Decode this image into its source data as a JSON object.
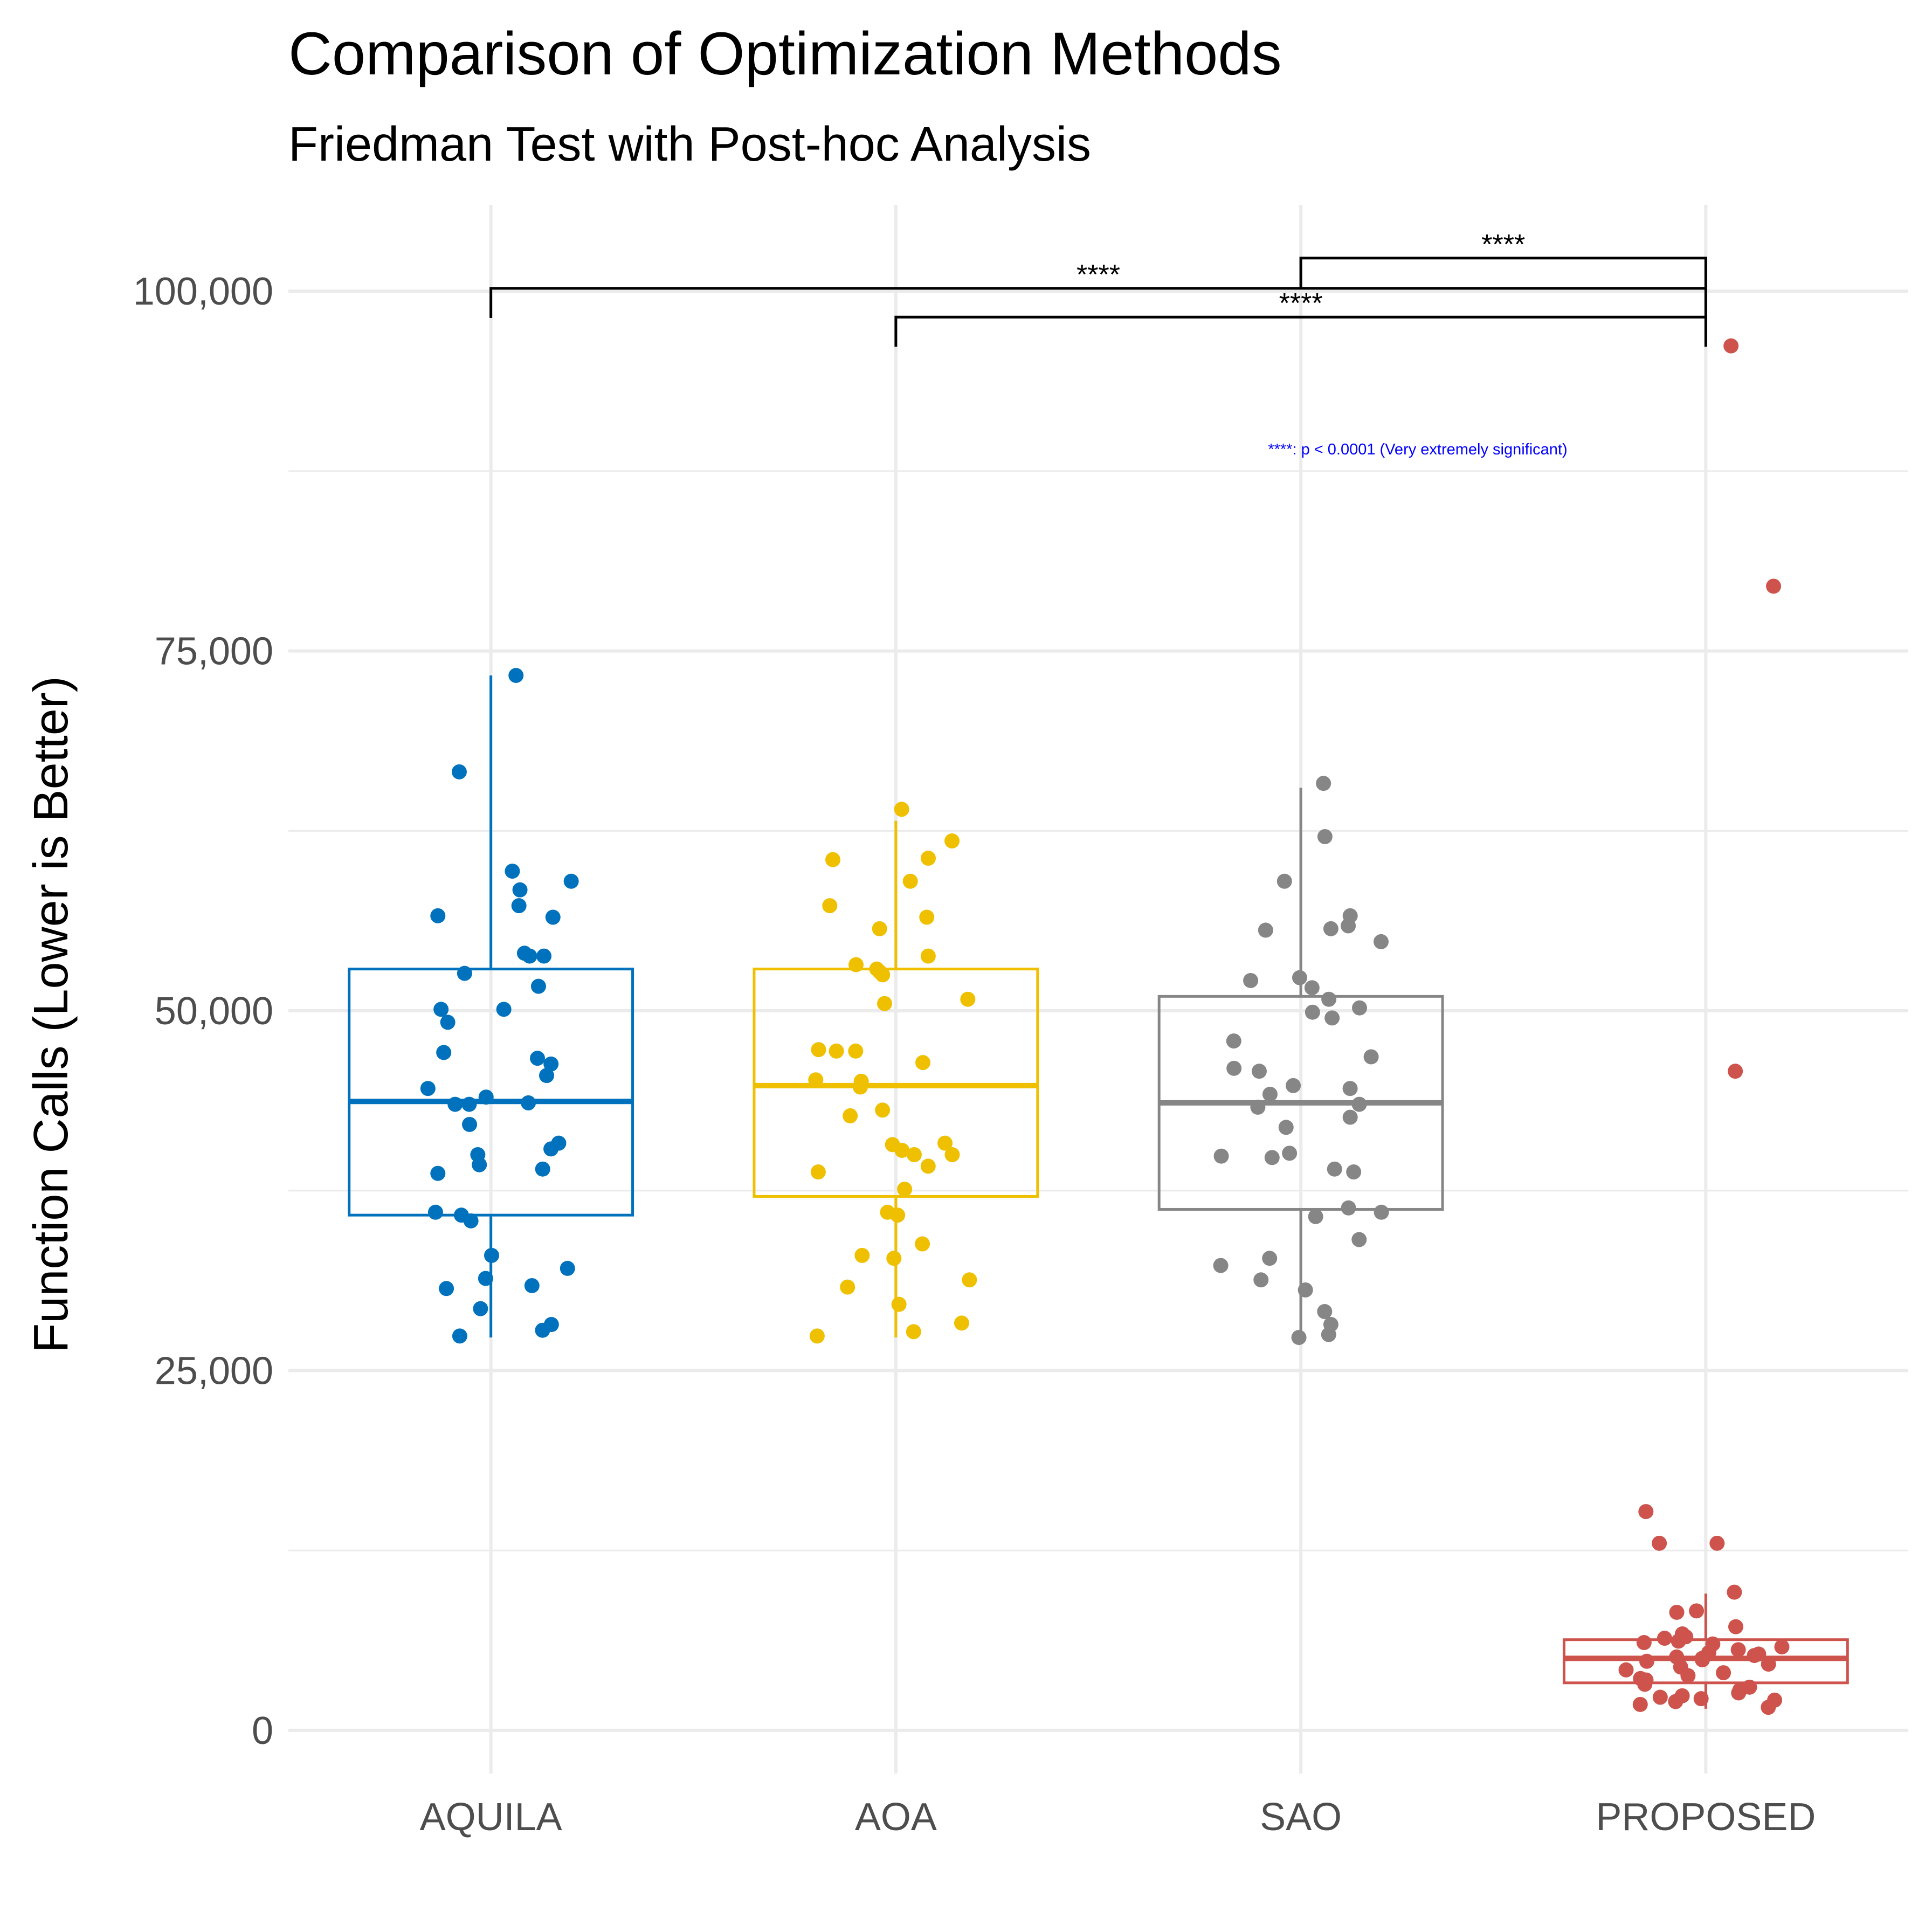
{
  "chart_data": {
    "type": "box",
    "title": "Comparison of Optimization Methods",
    "subtitle": "Friedman Test with Post-hoc Analysis",
    "xlabel": "",
    "ylabel": "Function Calls (Lower is Better)",
    "ylim": [
      -3000,
      106000
    ],
    "y_ticks": [
      0,
      25000,
      50000,
      75000,
      100000
    ],
    "y_tick_labels": [
      "0",
      "25,000",
      "50,000",
      "75,000",
      "100,000"
    ],
    "grid": true,
    "categories": [
      "AQUILA",
      "AOA",
      "SAO",
      "PROPOSED"
    ],
    "series": [
      {
        "name": "AQUILA",
        "color": "#0072bd",
        "box": {
          "min": 27300,
          "q1": 35800,
          "median": 43700,
          "q3": 52900,
          "max": 73300
        },
        "points": [
          73300,
          66600,
          59700,
          59000,
          58400,
          57300,
          56600,
          56500,
          54000,
          53800,
          53800,
          52600,
          51700,
          50100,
          50100,
          49200,
          47100,
          46700,
          46300,
          45500,
          44600,
          44000,
          43600,
          43500,
          43500,
          42100,
          40800,
          40400,
          40000,
          39300,
          39000,
          38700,
          36000,
          35800,
          35400,
          33000,
          32100,
          31400,
          30900,
          30700,
          29300,
          28200,
          27800,
          27400
        ]
      },
      {
        "name": "AOA",
        "color": "#efc000",
        "box": {
          "min": 27300,
          "q1": 37100,
          "median": 44800,
          "q3": 52900,
          "max": 63200
        },
        "points": [
          64000,
          61800,
          60600,
          60500,
          59000,
          57300,
          56500,
          55700,
          53800,
          53200,
          52900,
          52700,
          52500,
          50800,
          50500,
          47300,
          47200,
          47200,
          46400,
          45200,
          45100,
          44700,
          43100,
          42700,
          40800,
          40700,
          40300,
          40000,
          40000,
          39200,
          38800,
          37600,
          36000,
          35800,
          33800,
          33000,
          32800,
          31300,
          30800,
          29600,
          28300,
          27700,
          27400
        ]
      },
      {
        "name": "SAO",
        "color": "#868686",
        "box": {
          "min": 27500,
          "q1": 36200,
          "median": 43600,
          "q3": 51000,
          "max": 65500
        },
        "points": [
          65800,
          62100,
          59000,
          56600,
          55700,
          55600,
          55900,
          54800,
          52300,
          52100,
          51600,
          50800,
          50200,
          49900,
          49500,
          47900,
          46800,
          46000,
          45800,
          44800,
          44600,
          44200,
          43500,
          43300,
          42600,
          41900,
          40100,
          39900,
          39800,
          39000,
          38800,
          36300,
          36000,
          35700,
          34100,
          32800,
          32300,
          31300,
          30600,
          29100,
          28200,
          27500,
          27300
        ]
      },
      {
        "name": "PROPOSED",
        "color": "#cd534c",
        "box": {
          "min": 1500,
          "q1": 3300,
          "median": 5000,
          "q3": 6300,
          "max": 9500
        },
        "points": [
          96200,
          79500,
          45800,
          15200,
          13000,
          13000,
          9600,
          8300,
          8200,
          7200,
          6700,
          6500,
          6400,
          6200,
          6100,
          6000,
          5800,
          5600,
          5400,
          5300,
          5200,
          5100,
          5000,
          4900,
          4800,
          4600,
          4400,
          4200,
          4000,
          3800,
          3600,
          3500,
          3400,
          3200,
          3000,
          2800,
          2600,
          2400,
          2300,
          2200,
          2100,
          2000,
          1800,
          1600
        ]
      }
    ],
    "significance": [
      {
        "from": "AQUILA",
        "to": "PROPOSED",
        "label": "****",
        "y": 100200
      },
      {
        "from": "SAO",
        "to": "PROPOSED",
        "label": "****",
        "y": 102300
      },
      {
        "from": "AOA",
        "to": "PROPOSED",
        "label": "****",
        "y": 98200
      }
    ],
    "annotation": "****: p < 0.0001 (Very extremely significant)"
  }
}
